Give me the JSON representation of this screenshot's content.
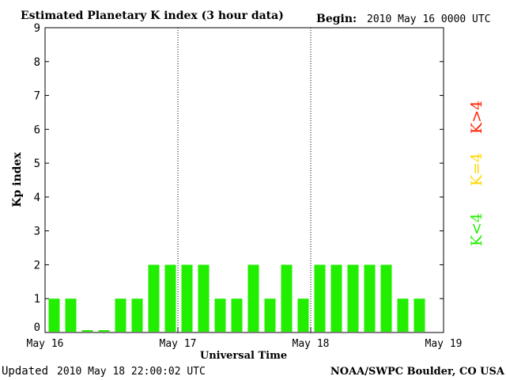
{
  "header": {
    "title": "Estimated Planetary K index (3 hour data)",
    "begin_label": "Begin:",
    "begin_value": "2010 May 16 0000 UTC"
  },
  "footer": {
    "updated_label": "Updated",
    "updated_value": "2010 May 18 22:00:02 UTC",
    "source": "NOAA/SWPC Boulder, CO USA"
  },
  "legend": {
    "high": {
      "label": "K>4",
      "color": "#ff2000"
    },
    "mid": {
      "label": "K=4",
      "color": "#ffd700"
    },
    "low": {
      "label": "K<4",
      "color": "#22ee00"
    }
  },
  "chart_data": {
    "type": "bar",
    "title": "Estimated Planetary K index (3 hour data)",
    "xlabel": "Universal Time",
    "ylabel": "Kp index",
    "ylim": [
      0,
      9
    ],
    "yticks": [
      "0",
      "1",
      "2",
      "3",
      "4",
      "5",
      "6",
      "7",
      "8",
      "9"
    ],
    "x_day_labels": [
      "May 16",
      "May 17",
      "May 18",
      "May 19"
    ],
    "day_dividers": [
      "May 17",
      "May 18"
    ],
    "interval_hours": 3,
    "bar_color": "#22ee00",
    "values": [
      1,
      1,
      0.05,
      0.05,
      1,
      1,
      2,
      2,
      2,
      2,
      1,
      1,
      2,
      1,
      2,
      1,
      2,
      2,
      2,
      2,
      2,
      1,
      1
    ]
  }
}
